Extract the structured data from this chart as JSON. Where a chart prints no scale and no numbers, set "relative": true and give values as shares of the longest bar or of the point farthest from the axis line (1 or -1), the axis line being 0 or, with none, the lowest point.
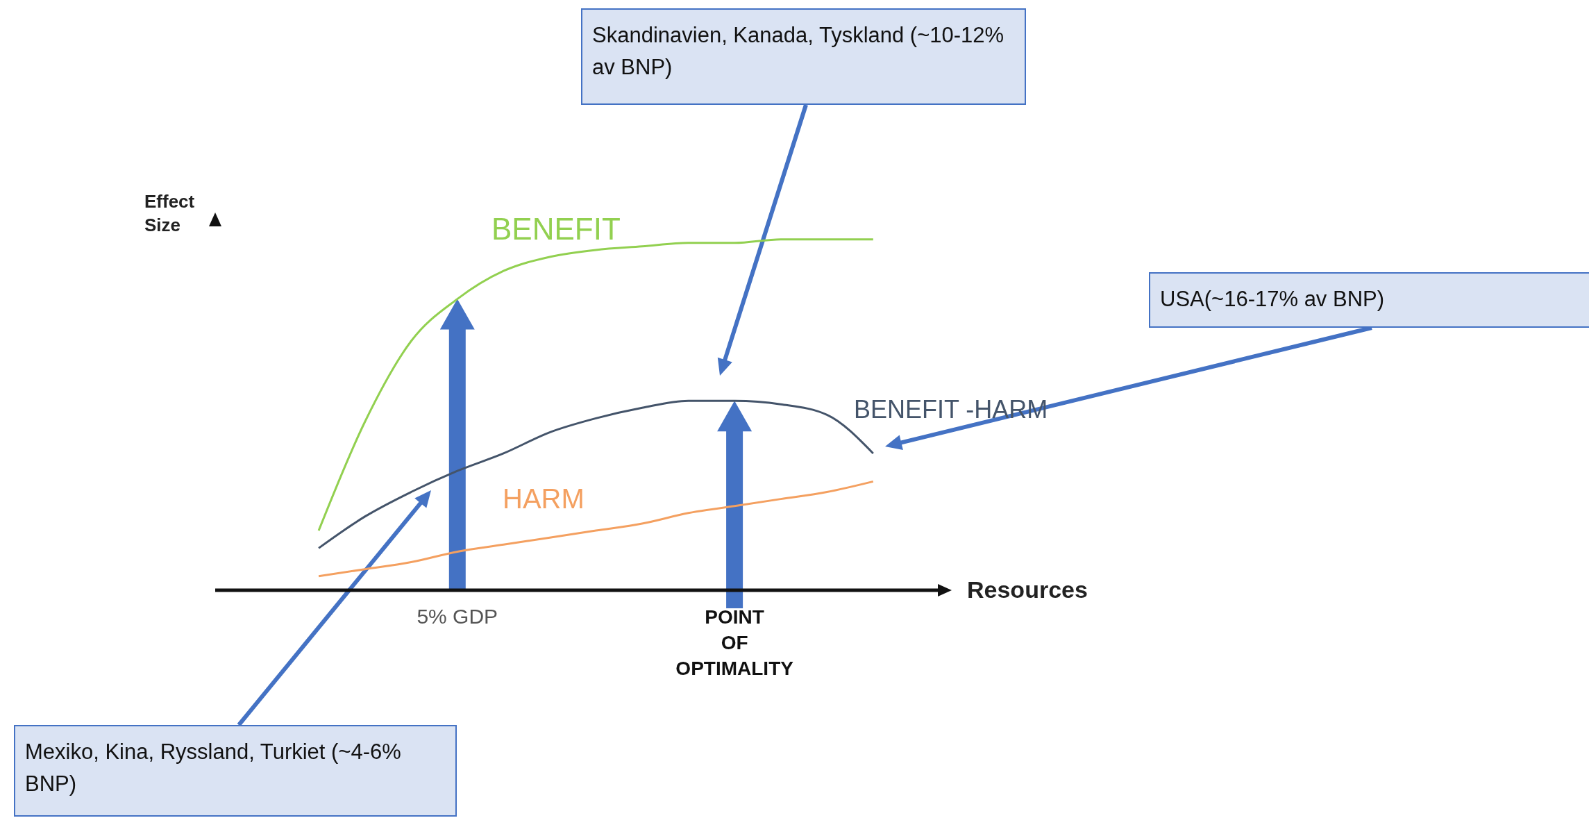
{
  "chart_data": {
    "type": "line",
    "relative": true,
    "xlabel": "Resources",
    "ylabel": "Effect Size",
    "categories": [
      null,
      null,
      null,
      null,
      null,
      "5% GDP",
      null,
      null,
      null,
      null,
      null,
      "POINT OF OPTIMALITY",
      null,
      null,
      null,
      null
    ],
    "series": [
      {
        "name": "BENEFIT",
        "color": "#92d050",
        "values": [
          null,
          null,
          0.17,
          0.48,
          0.71,
          0.83,
          0.91,
          0.95,
          0.97,
          0.98,
          0.99,
          0.99,
          1,
          1,
          1,
          null
        ]
      },
      {
        "name": "BENEFIT -HARM",
        "color": "#44546a",
        "values": [
          null,
          null,
          0.12,
          0.21,
          0.28,
          0.34,
          0.39,
          0.45,
          0.49,
          0.52,
          0.54,
          0.54,
          0.53,
          0.5,
          0.39,
          null
        ]
      },
      {
        "name": "HARM",
        "color": "#f4a060",
        "values": [
          null,
          null,
          0.04,
          0.06,
          0.08,
          0.11,
          0.13,
          0.15,
          0.17,
          0.19,
          0.22,
          0.24,
          0.26,
          0.28,
          0.31,
          null
        ]
      }
    ],
    "annotations": [
      "Skandinavien, Kanada, Tyskland (~10-12% av BNP)",
      "USA(~16-17% av BNP)",
      "Mexiko, Kina, Ryssland, Turkiet (~4-6% BNP)"
    ],
    "legend": false,
    "grid": false,
    "marker": "none",
    "line_style": "solid"
  }
}
